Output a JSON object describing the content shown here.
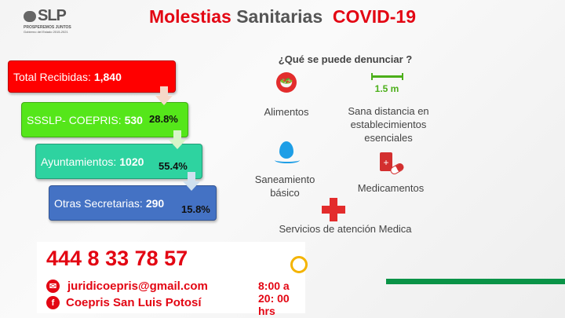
{
  "logo": {
    "text": "SLP",
    "tagline": "PROSPEREMOS JUNTOS",
    "sub": "Gobierno del Estado 2015-2021"
  },
  "title": {
    "part1": "Molestias",
    "part2": "Sanitarias",
    "part3": "COVID-19"
  },
  "funnel": [
    {
      "label": "Total Recibidas:",
      "value": "1,840",
      "color": "#ff0000"
    },
    {
      "label": "SSSLP- COEPRIS:",
      "value": "530",
      "percent": "28.8%",
      "color": "#55e61a"
    },
    {
      "label": "Ayuntamientos:",
      "value": "1020",
      "percent": "55.4%",
      "color": "#2ed3a0"
    },
    {
      "label": "Otras Secretarias:",
      "value": "290",
      "percent": "15.8%",
      "color": "#4472c4"
    }
  ],
  "report": {
    "heading": "¿Qué se puede denunciar ?",
    "distance": "1.5 m",
    "items": [
      "Alimentos",
      "Sana distancia en",
      "establecimientos",
      "esenciales",
      "Saneamiento",
      "básico",
      "Medicamentos",
      "Servicios de atención Medica"
    ]
  },
  "contact": {
    "phone": "444 8 33 78 57",
    "email": "juridicoepris@gmail.com",
    "facebook": "Coepris San Luis Potosí",
    "hours": "8:00 a 20: 00 hrs"
  }
}
